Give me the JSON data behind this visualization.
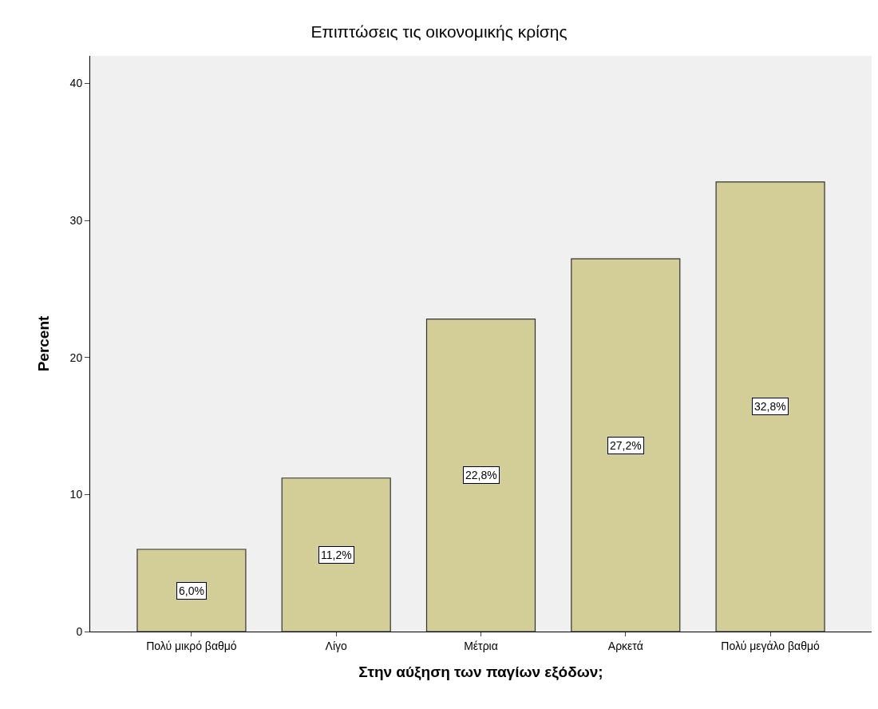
{
  "chart_data": {
    "type": "bar",
    "title": "Επιπτώσεις τις οικονομικής κρίσης",
    "xlabel": "Στην αύξηση των παγίων εξόδων;",
    "ylabel": "Percent",
    "categories": [
      "Πολύ μικρό βαθμό",
      "Λίγο",
      "Μέτρια",
      "Αρκετά",
      "Πολύ μεγάλο βαθμό"
    ],
    "values": [
      6.0,
      11.2,
      22.8,
      27.2,
      32.8
    ],
    "value_labels": [
      "6,0%",
      "11,2%",
      "22,8%",
      "27,2%",
      "32,8%"
    ],
    "color": "#d3ce97",
    "ylim": [
      0,
      42
    ],
    "yticks": [
      0,
      10,
      20,
      30,
      40
    ],
    "grid": false
  }
}
